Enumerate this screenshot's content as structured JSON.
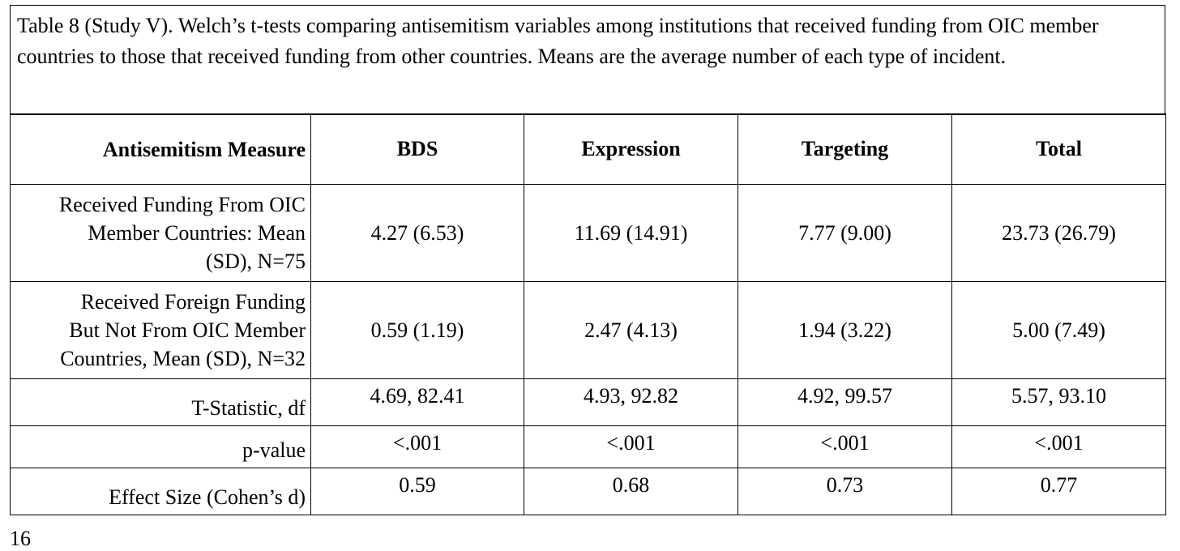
{
  "caption": "Table 8 (Study V). Welch’s t-tests comparing antisemitism variables among institutions that received funding from OIC member countries to those that received funding from other countries. Means are the average number of each type of incident.",
  "table": {
    "headers": [
      "Antisemitism Measure",
      "BDS",
      "Expression",
      "Targeting",
      "Total"
    ],
    "rows": [
      {
        "label_lines": [
          "Received Funding From OIC",
          "Member Countries: Mean",
          "(SD), N=75"
        ],
        "cells": [
          "4.27 (6.53)",
          "11.69 (14.91)",
          "7.77 (9.00)",
          "23.73 (26.79)"
        ]
      },
      {
        "label_lines": [
          "Received Foreign Funding",
          "But Not From OIC Member",
          "Countries, Mean (SD), N=32"
        ],
        "cells": [
          "0.59 (1.19)",
          "2.47 (4.13)",
          "1.94 (3.22)",
          "5.00 (7.49)"
        ]
      },
      {
        "label": "T-Statistic, df",
        "cells": [
          "4.69, 82.41",
          "4.93, 92.82",
          "4.92, 99.57",
          "5.57, 93.10"
        ]
      },
      {
        "label": "p-value",
        "cells": [
          "<.001",
          "<.001",
          "<.001",
          "<.001"
        ]
      },
      {
        "label": "Effect Size (Cohen’s d)",
        "cells": [
          "0.59",
          "0.68",
          "0.73",
          "0.77"
        ]
      }
    ]
  },
  "footnote": "16"
}
